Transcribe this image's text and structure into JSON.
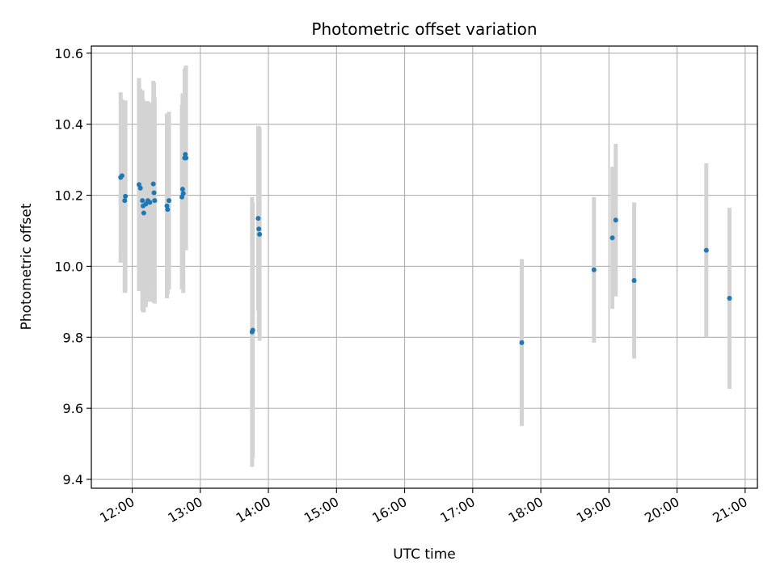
{
  "chart_data": {
    "type": "scatter",
    "title": "Photometric offset variation",
    "xlabel": "UTC time",
    "ylabel": "Photometric offset",
    "x_unit": "hours (UTC, decimal)",
    "xlim": [
      11.4,
      21.18
    ],
    "ylim": [
      9.375,
      10.62
    ],
    "grid": true,
    "x_ticks": [
      {
        "value": 12,
        "label": "12:00"
      },
      {
        "value": 13,
        "label": "13:00"
      },
      {
        "value": 14,
        "label": "14:00"
      },
      {
        "value": 15,
        "label": "15:00"
      },
      {
        "value": 16,
        "label": "16:00"
      },
      {
        "value": 17,
        "label": "17:00"
      },
      {
        "value": 18,
        "label": "18:00"
      },
      {
        "value": 19,
        "label": "19:00"
      },
      {
        "value": 20,
        "label": "20:00"
      },
      {
        "value": 21,
        "label": "21:00"
      }
    ],
    "y_ticks": [
      {
        "value": 9.4,
        "label": "9.4"
      },
      {
        "value": 9.6,
        "label": "9.6"
      },
      {
        "value": 9.8,
        "label": "9.8"
      },
      {
        "value": 10.0,
        "label": "10.0"
      },
      {
        "value": 10.2,
        "label": "10.2"
      },
      {
        "value": 10.4,
        "label": "10.4"
      },
      {
        "value": 10.6,
        "label": "10.6"
      }
    ],
    "marker_color": "#1f77b4",
    "errorbar_color": "#d3d3d3",
    "points": [
      {
        "x": 11.83,
        "y": 10.25,
        "err": 0.24
      },
      {
        "x": 11.85,
        "y": 10.255,
        "err": 0.215
      },
      {
        "x": 11.89,
        "y": 10.185,
        "err": 0.26
      },
      {
        "x": 11.9,
        "y": 10.197,
        "err": 0.27
      },
      {
        "x": 12.1,
        "y": 10.23,
        "err": 0.3
      },
      {
        "x": 12.12,
        "y": 10.22,
        "err": 0.28
      },
      {
        "x": 12.15,
        "y": 10.185,
        "err": 0.31
      },
      {
        "x": 12.16,
        "y": 10.17,
        "err": 0.3
      },
      {
        "x": 12.17,
        "y": 10.15,
        "err": 0.28
      },
      {
        "x": 12.2,
        "y": 10.175,
        "err": 0.29
      },
      {
        "x": 12.23,
        "y": 10.185,
        "err": 0.28
      },
      {
        "x": 12.26,
        "y": 10.18,
        "err": 0.28
      },
      {
        "x": 12.31,
        "y": 10.232,
        "err": 0.29
      },
      {
        "x": 12.32,
        "y": 10.207,
        "err": 0.31
      },
      {
        "x": 12.33,
        "y": 10.185,
        "err": 0.29
      },
      {
        "x": 12.51,
        "y": 10.17,
        "err": 0.26
      },
      {
        "x": 12.52,
        "y": 10.16,
        "err": 0.24
      },
      {
        "x": 12.54,
        "y": 10.185,
        "err": 0.25
      },
      {
        "x": 12.73,
        "y": 10.195,
        "err": 0.26
      },
      {
        "x": 12.74,
        "y": 10.217,
        "err": 0.27
      },
      {
        "x": 12.75,
        "y": 10.205,
        "err": 0.28
      },
      {
        "x": 12.77,
        "y": 10.305,
        "err": 0.25
      },
      {
        "x": 12.78,
        "y": 10.315,
        "err": 0.245
      },
      {
        "x": 12.79,
        "y": 10.305,
        "err": 0.26
      },
      {
        "x": 13.76,
        "y": 9.815,
        "err": 0.38
      },
      {
        "x": 13.77,
        "y": 9.82,
        "err": 0.36
      },
      {
        "x": 13.85,
        "y": 10.135,
        "err": 0.26
      },
      {
        "x": 13.86,
        "y": 10.105,
        "err": 0.29
      },
      {
        "x": 13.87,
        "y": 10.09,
        "err": 0.3
      },
      {
        "x": 17.72,
        "y": 9.785,
        "err": 0.235
      },
      {
        "x": 18.78,
        "y": 9.99,
        "err": 0.205
      },
      {
        "x": 19.05,
        "y": 10.08,
        "err": 0.2
      },
      {
        "x": 19.1,
        "y": 10.13,
        "err": 0.215
      },
      {
        "x": 19.37,
        "y": 9.96,
        "err": 0.22
      },
      {
        "x": 20.43,
        "y": 10.045,
        "err": 0.245
      },
      {
        "x": 20.77,
        "y": 9.91,
        "err": 0.255
      }
    ]
  }
}
